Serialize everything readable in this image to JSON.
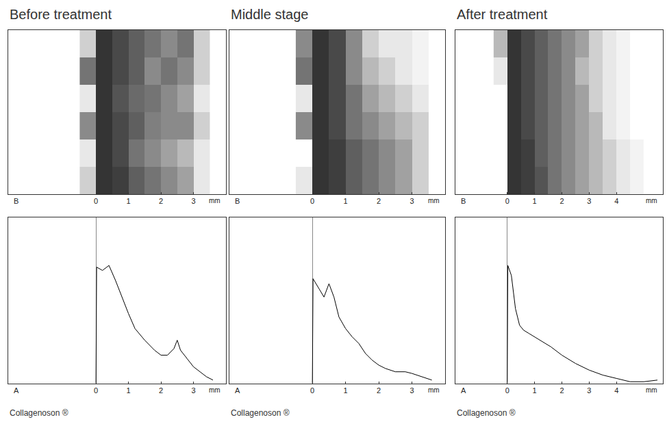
{
  "chart_data": [
    {
      "type": "heatmap",
      "title": "Before treatment",
      "letter": "B",
      "x_label": "mm",
      "x": [
        -0.25,
        0.25,
        0.75,
        1.25,
        1.75,
        2.25,
        2.75,
        3.25
      ],
      "z": [
        [
          0.2,
          0.9,
          0.8,
          0.7,
          0.6,
          0.5,
          0.6,
          0.2
        ],
        [
          0.6,
          0.9,
          0.8,
          0.7,
          0.5,
          0.6,
          0.5,
          0.2
        ],
        [
          0.1,
          0.9,
          0.75,
          0.65,
          0.6,
          0.5,
          0.4,
          0.1
        ],
        [
          0.5,
          0.9,
          0.8,
          0.7,
          0.55,
          0.5,
          0.5,
          0.2
        ],
        [
          0.1,
          0.9,
          0.8,
          0.6,
          0.5,
          0.4,
          0.3,
          0.1
        ],
        [
          0.2,
          0.9,
          0.85,
          0.7,
          0.6,
          0.5,
          0.4,
          0.1
        ]
      ],
      "zlim": [
        0,
        1
      ],
      "xlim": [
        -2.7,
        4.0
      ],
      "xticks": [
        0,
        1,
        2,
        3
      ],
      "tick_labels": "x",
      "grid": false
    },
    {
      "type": "line",
      "letter": "A",
      "x_label": "mm",
      "caption": "Collagenoson ®",
      "color": "#000000",
      "line_style": "solid",
      "x": [
        0,
        0.02,
        0.2,
        0.4,
        0.6,
        0.8,
        1.0,
        1.2,
        1.5,
        1.8,
        2.0,
        2.2,
        2.4,
        2.5,
        2.6,
        2.8,
        3.0,
        3.2,
        3.4,
        3.6
      ],
      "values": [
        0,
        70,
        68,
        71,
        62,
        52,
        42,
        33,
        26,
        20,
        17,
        17,
        21,
        26,
        20,
        15,
        10,
        7,
        4,
        2
      ],
      "xlim": [
        -2.7,
        4.0
      ],
      "xticks": [
        0,
        1,
        2,
        3
      ],
      "ylim": [
        0,
        100
      ],
      "tick_labels": "x",
      "grid": false
    },
    {
      "type": "heatmap",
      "title": "Middle stage",
      "letter": "B",
      "x_label": "mm",
      "x": [
        -0.25,
        0.25,
        0.75,
        1.25,
        1.75,
        2.25,
        2.75,
        3.25
      ],
      "z": [
        [
          0.5,
          0.9,
          0.8,
          0.5,
          0.2,
          0.1,
          0.1,
          0.05
        ],
        [
          0.6,
          0.9,
          0.8,
          0.5,
          0.3,
          0.2,
          0.1,
          0.05
        ],
        [
          0.1,
          0.9,
          0.8,
          0.6,
          0.4,
          0.3,
          0.2,
          0.1
        ],
        [
          0.5,
          0.9,
          0.8,
          0.6,
          0.5,
          0.4,
          0.3,
          0.2
        ],
        [
          0.0,
          0.9,
          0.85,
          0.7,
          0.6,
          0.5,
          0.4,
          0.2
        ],
        [
          0.1,
          0.9,
          0.85,
          0.7,
          0.6,
          0.5,
          0.4,
          0.2
        ]
      ],
      "zlim": [
        0,
        1
      ],
      "xlim": [
        -2.5,
        4.0
      ],
      "xticks": [
        0,
        1,
        2,
        3
      ],
      "tick_labels": "x",
      "grid": false
    },
    {
      "type": "line",
      "letter": "A",
      "x_label": "mm",
      "caption": "Collagenoson ®",
      "color": "#000000",
      "line_style": "solid",
      "x": [
        0,
        0.02,
        0.2,
        0.35,
        0.5,
        0.65,
        0.8,
        1.0,
        1.2,
        1.4,
        1.6,
        1.8,
        2.0,
        2.2,
        2.5,
        2.8,
        3.0,
        3.3,
        3.6
      ],
      "values": [
        0,
        63,
        57,
        52,
        60,
        52,
        40,
        33,
        28,
        24,
        18,
        14,
        11,
        9,
        7,
        7,
        6,
        4,
        2
      ],
      "xlim": [
        -2.5,
        4.0
      ],
      "xticks": [
        0,
        1,
        2,
        3
      ],
      "ylim": [
        0,
        100
      ],
      "tick_labels": "x",
      "grid": false
    },
    {
      "type": "heatmap",
      "title": "After treatment",
      "letter": "B",
      "x_label": "mm",
      "x": [
        -0.25,
        0.25,
        0.75,
        1.25,
        1.75,
        2.25,
        2.75,
        3.25,
        3.75,
        4.25,
        4.75
      ],
      "z": [
        [
          0.3,
          0.9,
          0.8,
          0.7,
          0.6,
          0.5,
          0.4,
          0.2,
          0.1,
          0.05,
          0
        ],
        [
          0.1,
          0.9,
          0.8,
          0.7,
          0.6,
          0.5,
          0.3,
          0.2,
          0.1,
          0.05,
          0
        ],
        [
          0.0,
          0.9,
          0.8,
          0.7,
          0.6,
          0.5,
          0.4,
          0.2,
          0.1,
          0.05,
          0
        ],
        [
          0.0,
          0.9,
          0.8,
          0.7,
          0.6,
          0.5,
          0.4,
          0.3,
          0.1,
          0.05,
          0
        ],
        [
          0.0,
          0.9,
          0.85,
          0.7,
          0.6,
          0.5,
          0.4,
          0.3,
          0.2,
          0.1,
          0.05
        ],
        [
          0.0,
          0.9,
          0.85,
          0.75,
          0.6,
          0.5,
          0.4,
          0.3,
          0.2,
          0.1,
          0.05
        ]
      ],
      "zlim": [
        0,
        1
      ],
      "xlim": [
        -1.9,
        5.7
      ],
      "xticks": [
        0,
        1,
        2,
        3,
        4
      ],
      "tick_labels": "x",
      "grid": false
    },
    {
      "type": "line",
      "letter": "A",
      "x_label": "mm",
      "caption": "Collagenoson ®",
      "color": "#000000",
      "line_style": "solid",
      "x": [
        0,
        0.02,
        0.15,
        0.3,
        0.45,
        0.6,
        0.8,
        1.0,
        1.3,
        1.6,
        2.0,
        2.5,
        3.0,
        3.5,
        4.0,
        4.5,
        5.0,
        5.5
      ],
      "values": [
        0,
        71,
        65,
        45,
        35,
        32,
        30,
        28,
        25,
        22,
        17,
        12,
        8,
        5,
        3,
        1,
        1,
        2
      ],
      "xlim": [
        -1.9,
        5.7
      ],
      "xticks": [
        0,
        1,
        2,
        3,
        4
      ],
      "ylim": [
        0,
        100
      ],
      "tick_labels": "x",
      "grid": false
    }
  ]
}
